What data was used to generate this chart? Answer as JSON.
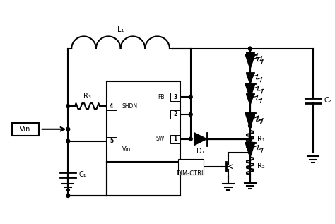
{
  "bg_color": "#ffffff",
  "lw": 1.5,
  "labels": {
    "L1": "L₁",
    "R3": "R₃",
    "C1": "C₁",
    "C2": "C₂",
    "R1": "R₁",
    "R2": "R₂",
    "D1": "D₁",
    "Vin": "Vin",
    "SHDN": "SHDN",
    "FB": "FB",
    "SW": "SW",
    "Vin_pin": "Vin",
    "DIM_CTRL": "DIM-CTRL",
    "pin4": "4",
    "pin5": "5",
    "pin3": "3",
    "pin2": "2",
    "pin1": "1"
  }
}
